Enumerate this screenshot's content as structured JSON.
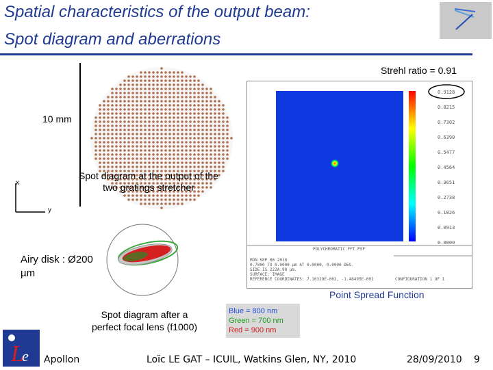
{
  "title": {
    "line1": "Spatial characteristics of the output beam:",
    "line2": "Spot diagram and aberrations"
  },
  "strehl": "Strehl ratio = 0.91",
  "scale_label": "10 mm",
  "axes": {
    "x": "x",
    "y": "y"
  },
  "spot_caption": "Spot diagram at the output of the two gratings stretcher",
  "airy": "Airy disk : Ø200 µm",
  "focal_caption": "Spot diagram after a perfect focal lens (f1000)",
  "psf_label": "Point Spread Function",
  "psf_title": "POLYCHROMATIC FFT PSF",
  "colorbar_values": [
    "0.9128",
    "0.8215",
    "0.7302",
    "0.6390",
    "0.5477",
    "0.4564",
    "0.3651",
    "0.2738",
    "0.1826",
    "0.0913",
    "0.0000"
  ],
  "psf_info": [
    "MON SEP 06 2010",
    "0.7000 TO 0.9000 µm AT 0.0000, 0.0000 DEG.",
    "SIDE IS 222A.98 µm.",
    "SURFACE: IMAGE",
    "REFERENCE COORDINATES: 7.10329E-002, -1.48495E-002"
  ],
  "psf_config": "CONFIGURATION 1 OF 1",
  "wavelengths": {
    "blue": "Blue = 800 nm",
    "green": "Green = 700 nm",
    "red": "Red = 900 nm"
  },
  "colors": {
    "title": "#1f3a93",
    "blue": "#1f4fd8",
    "green": "#1a9a1a",
    "red": "#d41a1a"
  },
  "footer": {
    "org": "Apollon",
    "author": "Loïc LE GAT – ICUIL, Watkins Glen, NY, 2010",
    "date": "28/09/2010",
    "page": "9"
  }
}
